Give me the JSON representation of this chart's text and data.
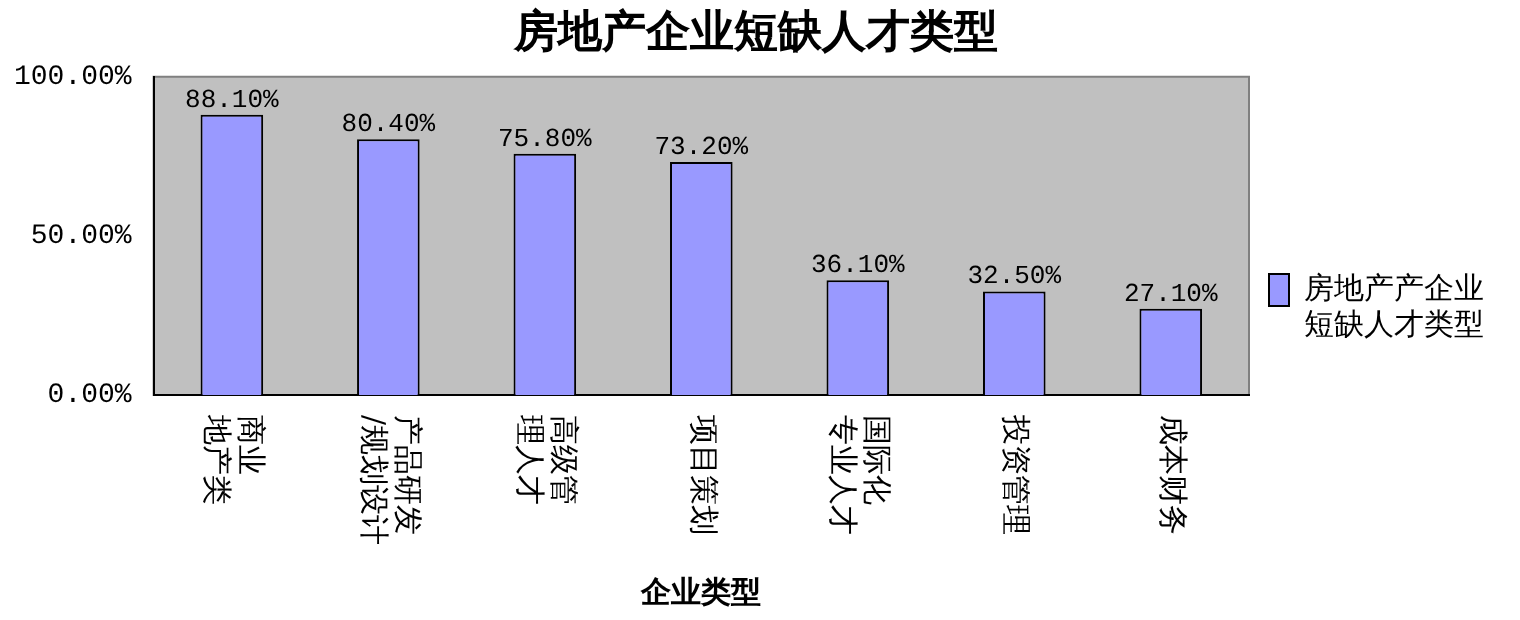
{
  "chart_data": {
    "type": "bar",
    "title": "房地产企业短缺人才类型",
    "xlabel": "企业类型",
    "categories": [
      "商业地产类",
      "产品研发/规划设计",
      "高级管理人才",
      "项目策划",
      "国际化专业人才",
      "投资管理",
      "成本财务"
    ],
    "series": [
      {
        "name": "房地产产企业短缺人才类型",
        "color": "#9999ff",
        "values": [
          88.1,
          80.4,
          75.8,
          73.2,
          36.1,
          32.5,
          27.1
        ],
        "value_labels": [
          "88.10%",
          "80.40%",
          "75.80%",
          "73.20%",
          "36.10%",
          "32.50%",
          "27.10%"
        ]
      }
    ],
    "ylim": [
      0,
      100
    ],
    "yticks": [
      {
        "value": 0,
        "label": "0.00%"
      },
      {
        "value": 50,
        "label": "50.00%"
      },
      {
        "value": 100,
        "label": "100.00%"
      }
    ],
    "grid": false,
    "legend": "right"
  }
}
